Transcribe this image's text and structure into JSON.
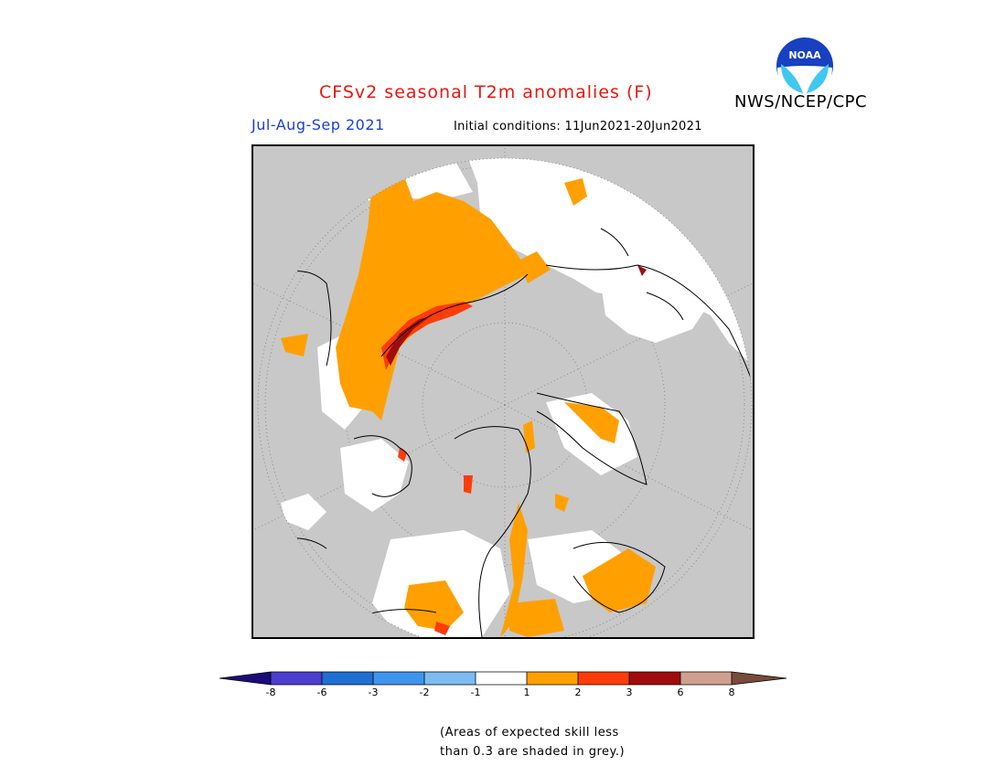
{
  "header": {
    "title": "CFSv2 seasonal T2m anomalies (F)",
    "agency": "NWS/NCEP/CPC",
    "logo_text": "NOAA",
    "season": "Jul-Aug-Sep 2021",
    "initial_conditions": "Initial conditions: 11Jun2021-20Jun2021"
  },
  "legend": {
    "ticks": [
      "-8",
      "-6",
      "-3",
      "-2",
      "-1",
      "1",
      "2",
      "3",
      "6",
      "8"
    ],
    "colors": [
      "#1c0b7a",
      "#4a3fcf",
      "#1f6fd3",
      "#3e95ee",
      "#7cbbf2",
      "#ffffff",
      "#ffa000",
      "#ff3c0a",
      "#a00c0c",
      "#cfa090",
      "#7a4a3a"
    ],
    "note_line1": "(Areas of expected skill less",
    "note_line2": "than 0.3 are shaded in grey.)"
  },
  "map": {
    "projection": "north polar stereographic",
    "skill_mask_color": "#c8c8c8",
    "coastline_color": "#000000"
  }
}
